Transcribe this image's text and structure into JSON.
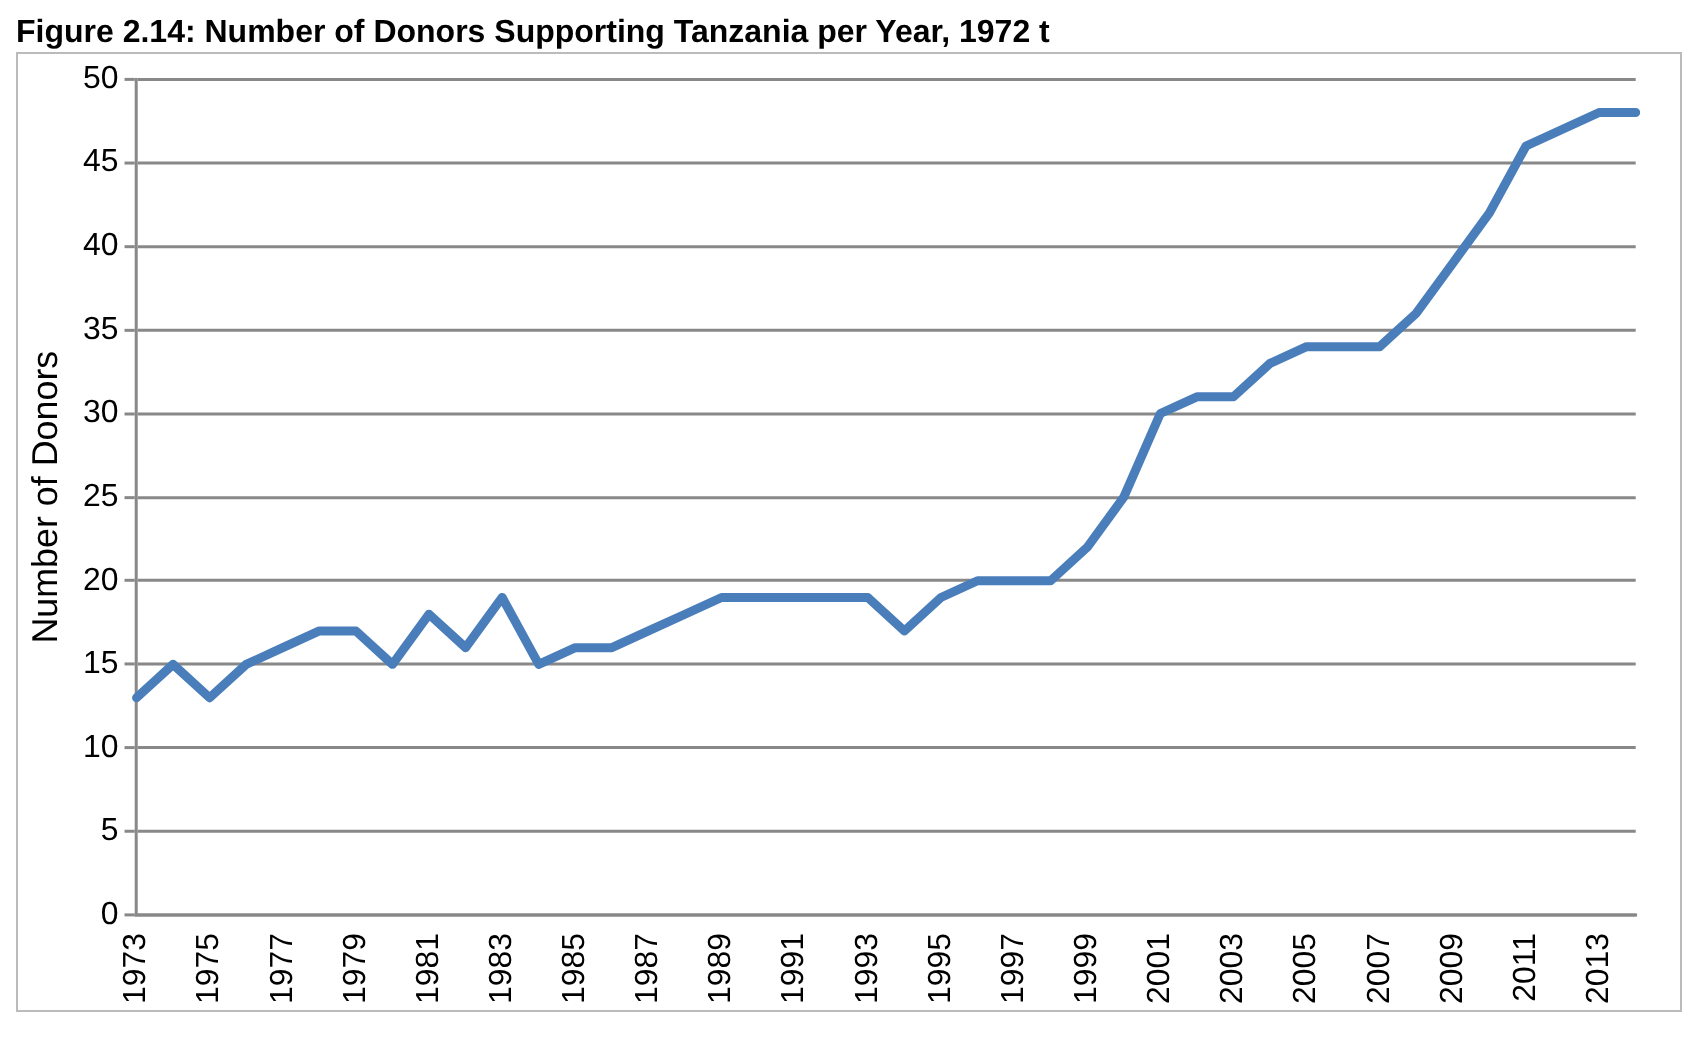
{
  "chart_data": {
    "type": "line",
    "title": "Figure 2.14: Number of Donors Supporting Tanzania per Year, 1972 t",
    "ylabel": "Number of Donors",
    "categories": [
      "1973",
      null,
      "1975",
      null,
      "1977",
      null,
      "1979",
      null,
      "1981",
      null,
      "1983",
      null,
      "1985",
      null,
      "1987",
      null,
      "1989",
      null,
      "1991",
      null,
      "1993",
      null,
      "1995",
      null,
      "1997",
      null,
      "1999",
      null,
      "2001",
      null,
      "2003",
      null,
      "2005",
      null,
      "2007",
      null,
      "2009",
      null,
      "2011",
      null,
      "2013",
      null
    ],
    "series": [
      {
        "color": "#4a7ebb",
        "values": [
          13,
          15,
          13,
          15,
          16,
          17,
          17,
          15,
          18,
          16,
          19,
          15,
          16,
          16,
          17,
          18,
          19,
          19,
          19,
          19,
          19,
          17,
          19,
          20,
          20,
          20,
          22,
          25,
          30,
          31,
          31,
          33,
          34,
          34,
          34,
          36,
          39,
          42,
          46,
          47,
          48,
          48
        ]
      }
    ],
    "ylim": [
      0,
      50
    ],
    "yticks": [
      0,
      5,
      10,
      15,
      20,
      25,
      30,
      35,
      40,
      45,
      50
    ],
    "grid": "y",
    "legend": false,
    "marker": "none",
    "line_style": "solid"
  }
}
